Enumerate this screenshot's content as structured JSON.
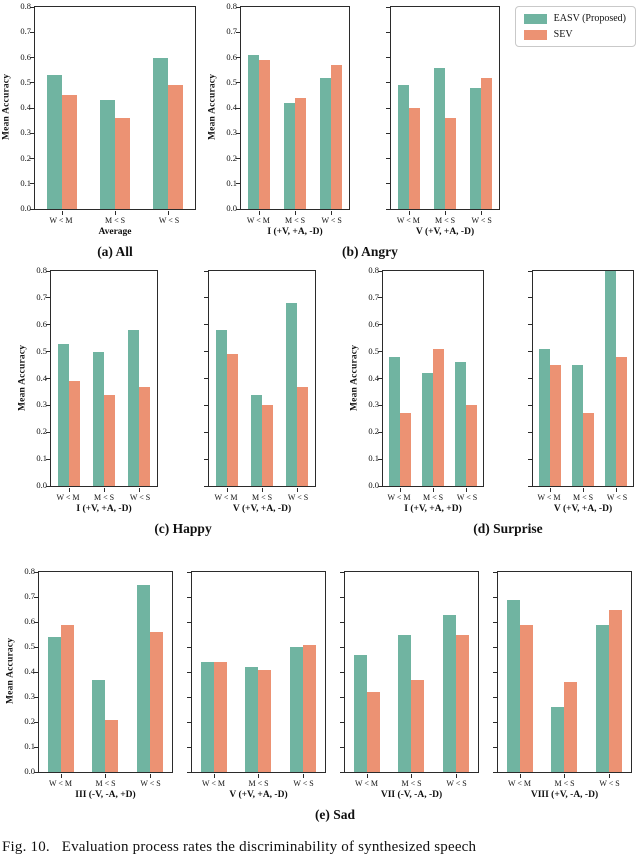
{
  "figure": {
    "caption": "Fig. 10.   Evaluation process rates the discriminability of synthesized speech"
  },
  "legend": {
    "position": "top-right",
    "items": [
      {
        "label": "EASV (Proposed)",
        "color": "#70b4a1"
      },
      {
        "label": "SEV",
        "color": "#ec9273"
      }
    ]
  },
  "colors": {
    "easv": "#70b4a1",
    "sev": "#ec9273",
    "axis": "#2b2b2b"
  },
  "chart_data": [
    {
      "id": "a",
      "row": 1,
      "type": "bar",
      "caption": "(a) All",
      "ylabel": "Mean Accuracy",
      "ylim": [
        0,
        0.8
      ],
      "yticks": [
        0.0,
        0.1,
        0.2,
        0.3,
        0.4,
        0.5,
        0.6,
        0.7,
        0.8
      ],
      "grid": false,
      "categories": [
        "W < M",
        "M < S",
        "W < S"
      ],
      "subplots": [
        {
          "xlabel": "Average",
          "series": [
            {
              "name": "EASV (Proposed)",
              "values": [
                0.53,
                0.43,
                0.6
              ]
            },
            {
              "name": "SEV",
              "values": [
                0.45,
                0.36,
                0.49
              ]
            }
          ]
        }
      ]
    },
    {
      "id": "b",
      "row": 1,
      "type": "bar",
      "caption": "(b) Angry",
      "ylabel": "Mean Accuracy",
      "ylim": [
        0,
        0.8
      ],
      "yticks": [
        0.0,
        0.1,
        0.2,
        0.3,
        0.4,
        0.5,
        0.6,
        0.7,
        0.8
      ],
      "grid": false,
      "categories": [
        "W < M",
        "M < S",
        "W < S"
      ],
      "subplots": [
        {
          "xlabel": "I (+V, +A, -D)",
          "series": [
            {
              "name": "EASV (Proposed)",
              "values": [
                0.61,
                0.42,
                0.52
              ]
            },
            {
              "name": "SEV",
              "values": [
                0.59,
                0.44,
                0.57
              ]
            }
          ]
        },
        {
          "xlabel": "V (+V, +A, -D)",
          "series": [
            {
              "name": "EASV (Proposed)",
              "values": [
                0.49,
                0.56,
                0.48
              ]
            },
            {
              "name": "SEV",
              "values": [
                0.4,
                0.36,
                0.52
              ]
            }
          ]
        }
      ]
    },
    {
      "id": "c",
      "row": 2,
      "type": "bar",
      "caption": "(c) Happy",
      "ylabel": "Mean Accuracy",
      "ylim": [
        0,
        0.8
      ],
      "yticks": [
        0.0,
        0.1,
        0.2,
        0.3,
        0.4,
        0.5,
        0.6,
        0.7,
        0.8
      ],
      "grid": false,
      "categories": [
        "W < M",
        "M < S",
        "W < S"
      ],
      "subplots": [
        {
          "xlabel": "I (+V, +A, -D)",
          "series": [
            {
              "name": "EASV (Proposed)",
              "values": [
                0.53,
                0.5,
                0.58
              ]
            },
            {
              "name": "SEV",
              "values": [
                0.39,
                0.34,
                0.37
              ]
            }
          ]
        },
        {
          "xlabel": "V (+V, +A, -D)",
          "series": [
            {
              "name": "EASV (Proposed)",
              "values": [
                0.58,
                0.34,
                0.68
              ]
            },
            {
              "name": "SEV",
              "values": [
                0.49,
                0.3,
                0.37
              ]
            }
          ]
        }
      ]
    },
    {
      "id": "d",
      "row": 2,
      "type": "bar",
      "caption": "(d) Surprise",
      "ylabel": "Mean Accuracy",
      "ylim": [
        0,
        0.8
      ],
      "yticks": [
        0.0,
        0.1,
        0.2,
        0.3,
        0.4,
        0.5,
        0.6,
        0.7,
        0.8
      ],
      "grid": false,
      "categories": [
        "W < M",
        "M < S",
        "W < S"
      ],
      "subplots": [
        {
          "xlabel": "I (+V, +A, +D)",
          "series": [
            {
              "name": "EASV (Proposed)",
              "values": [
                0.48,
                0.42,
                0.46
              ]
            },
            {
              "name": "SEV",
              "values": [
                0.27,
                0.51,
                0.3
              ]
            }
          ]
        },
        {
          "xlabel": "V (+V, +A, -D)",
          "series": [
            {
              "name": "EASV (Proposed)",
              "values": [
                0.51,
                0.45,
                0.8
              ]
            },
            {
              "name": "SEV",
              "values": [
                0.45,
                0.27,
                0.48
              ]
            }
          ]
        }
      ]
    },
    {
      "id": "e",
      "row": 3,
      "type": "bar",
      "caption": "(e) Sad",
      "ylabel": "Mean Accuracy",
      "ylim": [
        0,
        0.8
      ],
      "yticks": [
        0.0,
        0.1,
        0.2,
        0.3,
        0.4,
        0.5,
        0.6,
        0.7,
        0.8
      ],
      "grid": false,
      "categories": [
        "W < M",
        "M < S",
        "W < S"
      ],
      "subplots": [
        {
          "xlabel": "III (-V, -A, +D)",
          "series": [
            {
              "name": "EASV (Proposed)",
              "values": [
                0.54,
                0.37,
                0.75
              ]
            },
            {
              "name": "SEV",
              "values": [
                0.59,
                0.21,
                0.56
              ]
            }
          ]
        },
        {
          "xlabel": "V (+V, +A, -D)",
          "series": [
            {
              "name": "EASV (Proposed)",
              "values": [
                0.44,
                0.42,
                0.5
              ]
            },
            {
              "name": "SEV",
              "values": [
                0.44,
                0.41,
                0.51
              ]
            }
          ]
        },
        {
          "xlabel": "VII (-V, -A, -D)",
          "series": [
            {
              "name": "EASV (Proposed)",
              "values": [
                0.47,
                0.55,
                0.63
              ]
            },
            {
              "name": "SEV",
              "values": [
                0.32,
                0.37,
                0.55
              ]
            }
          ]
        },
        {
          "xlabel": "VIII (+V, -A, -D)",
          "series": [
            {
              "name": "EASV (Proposed)",
              "values": [
                0.69,
                0.26,
                0.59
              ]
            },
            {
              "name": "SEV",
              "values": [
                0.59,
                0.36,
                0.65
              ]
            }
          ]
        }
      ]
    }
  ]
}
